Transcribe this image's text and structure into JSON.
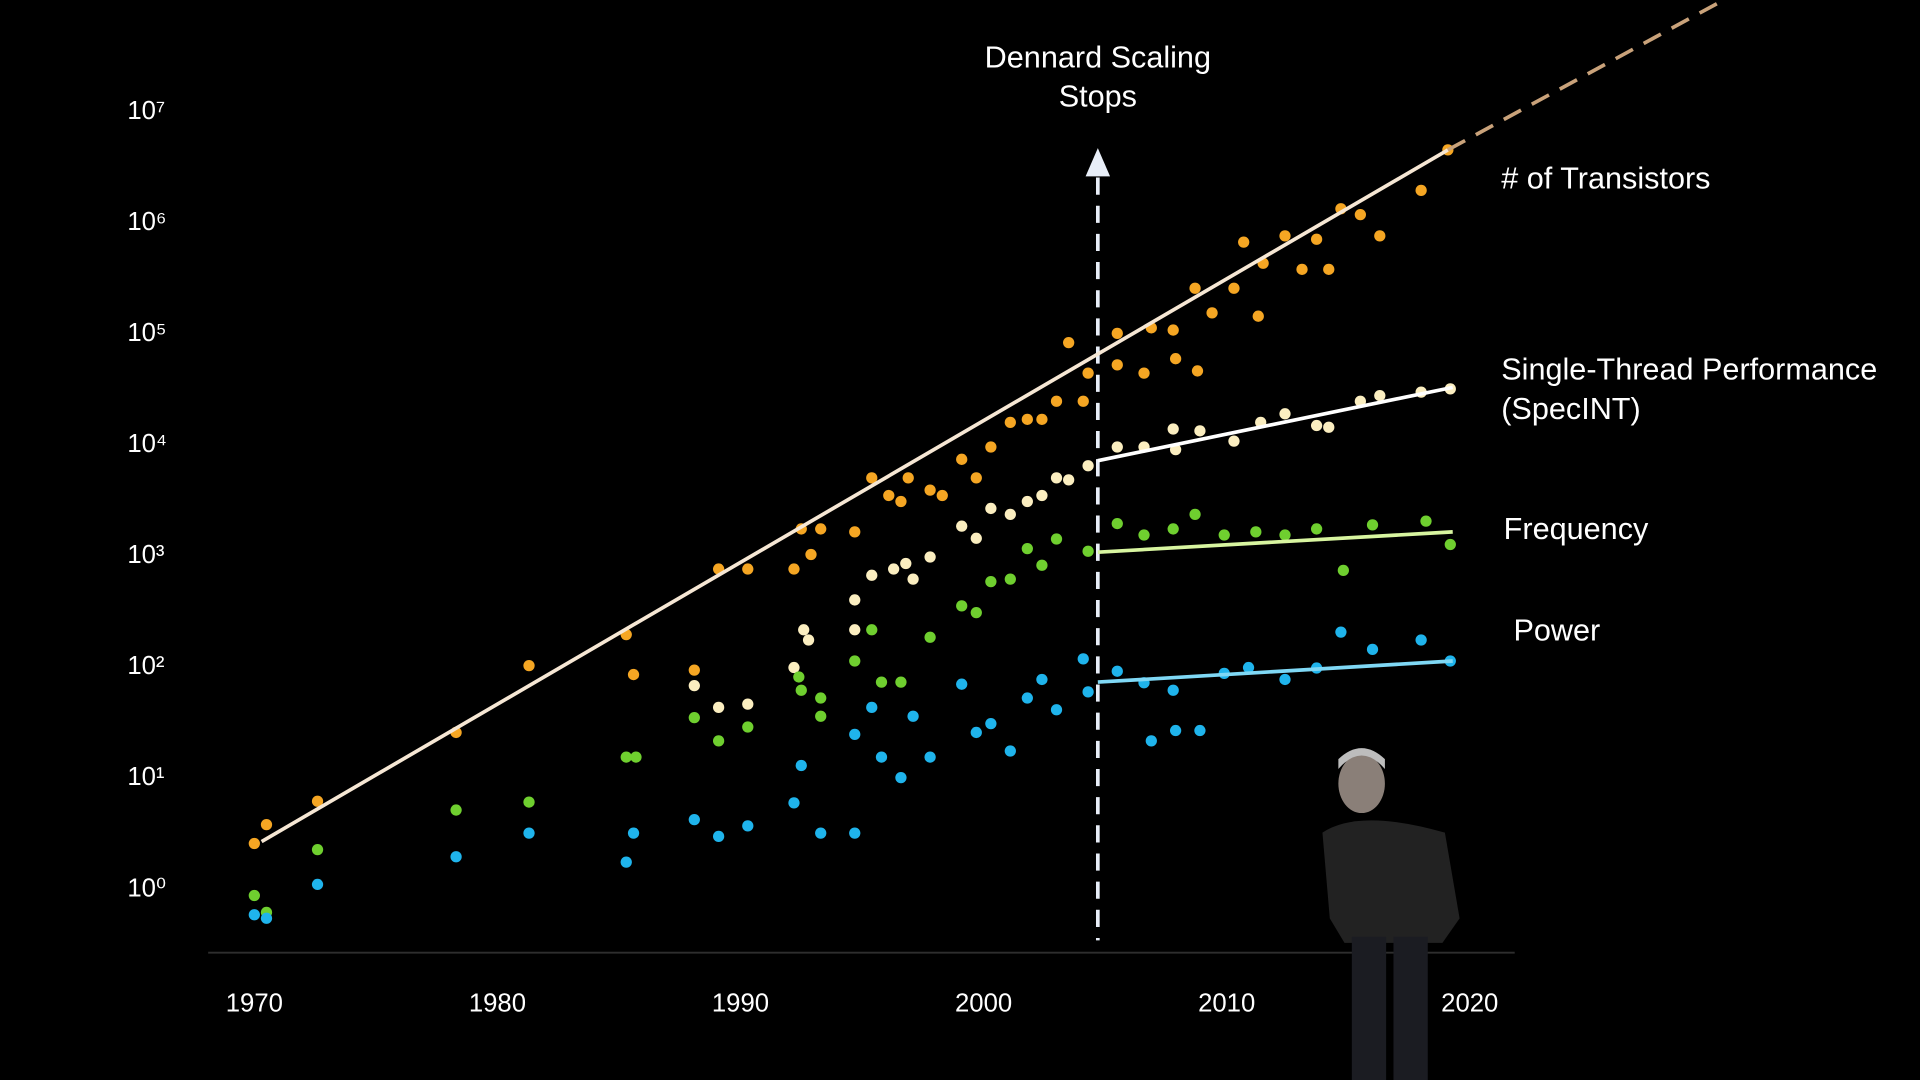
{
  "chart_data": {
    "type": "scatter",
    "log_y": true,
    "grid": false,
    "xlim": [
      1968,
      2022
    ],
    "ylim": [
      0.26,
      100000000
    ],
    "xticks": [
      1970,
      1980,
      1990,
      2000,
      2010,
      2020
    ],
    "yticks": [
      {
        "value": 1,
        "label": "10⁰"
      },
      {
        "value": 10,
        "label": "10¹"
      },
      {
        "value": 100,
        "label": "10²"
      },
      {
        "value": 1000,
        "label": "10³"
      },
      {
        "value": 10000,
        "label": "10⁴"
      },
      {
        "value": 100000,
        "label": "10⁵"
      },
      {
        "value": 1000000,
        "label": "10⁶"
      },
      {
        "value": 10000000,
        "label": "10⁷"
      }
    ],
    "annotation": {
      "lines": [
        "Dennard Scaling",
        "Stops"
      ],
      "x": 2004.7
    },
    "series": [
      {
        "name": "# of Transistors",
        "color": "#f5a623",
        "x": [
          1970.0,
          1970.5,
          1972.6,
          1978.3,
          1981.3,
          1985.3,
          1985.6,
          1988.1,
          1989.1,
          1990.3,
          1992.2,
          1992.5,
          1992.9,
          1993.3,
          1994.7,
          1995.4,
          1996.1,
          1996.6,
          1996.9,
          1997.8,
          1998.3,
          1999.1,
          1999.7,
          2000.3,
          2001.1,
          2001.8,
          2002.4,
          2003.0,
          2003.5,
          2004.1,
          2004.3,
          2005.5,
          2005.5,
          2006.6,
          2006.9,
          2007.8,
          2007.9,
          2008.7,
          2008.8,
          2009.4,
          2010.3,
          2010.7,
          2011.3,
          2011.5,
          2012.4,
          2013.1,
          2013.7,
          2014.2,
          2014.7,
          2015.5,
          2016.3,
          2018.0,
          2019.1
        ],
        "values": [
          2.5,
          3.7,
          6,
          25,
          100,
          190,
          83,
          91,
          740,
          740,
          740,
          1700,
          1000,
          1700,
          1600,
          4900,
          3400,
          3000,
          4900,
          3800,
          3400,
          7200,
          4900,
          9300,
          15500,
          16500,
          16500,
          24000,
          81000,
          24000,
          43000,
          98000,
          51000,
          43000,
          110000,
          105000,
          58000,
          250000,
          45000,
          150000,
          250000,
          650000,
          140000,
          420000,
          740000,
          370000,
          690000,
          370000,
          1300000,
          1150000,
          740000,
          1900000,
          4400000
        ],
        "trend": {
          "color": "#f6e7d4",
          "x": [
            1970.3,
            2019.1
          ],
          "values": [
            2.6,
            4400000
          ]
        },
        "projection": {
          "color": "#c9a27a",
          "x": [
            2019.1,
            2030.5
          ],
          "values": [
            4400000,
            100000000
          ]
        }
      },
      {
        "name": "Single-Thread Performance (SpecINT)",
        "color": "#fbeec0",
        "x": [
          1988.1,
          1989.1,
          1990.3,
          1992.2,
          1992.6,
          1992.8,
          1994.7,
          1994.7,
          1995.4,
          1996.3,
          1996.8,
          1997.1,
          1997.8,
          1999.1,
          1999.7,
          2000.3,
          2001.1,
          2001.8,
          2002.4,
          2003.0,
          2003.5,
          2004.3,
          2005.5,
          2006.6,
          2007.8,
          2007.9,
          2008.9,
          2010.3,
          2011.4,
          2012.4,
          2013.7,
          2014.2,
          2015.5,
          2016.3,
          2018.0,
          2019.2
        ],
        "values": [
          66,
          42,
          45,
          96,
          210,
          170,
          210,
          390,
          650,
          740,
          830,
          600,
          950,
          1800,
          1400,
          2600,
          2300,
          3000,
          3400,
          4900,
          4700,
          6300,
          9300,
          9300,
          13500,
          8800,
          13000,
          10500,
          15500,
          18500,
          14500,
          14000,
          24000,
          27000,
          29000,
          31000
        ],
        "trend": {
          "color": "#ffffff",
          "x": [
            2004.7,
            2019.3
          ],
          "values": [
            7000,
            32000
          ]
        }
      },
      {
        "name": "Frequency",
        "color": "#6fcf2f",
        "x": [
          1970.0,
          1970.5,
          1972.6,
          1978.3,
          1981.3,
          1985.3,
          1985.7,
          1988.1,
          1989.1,
          1990.3,
          1992.4,
          1992.5,
          1993.3,
          1993.3,
          1994.7,
          1995.4,
          1995.8,
          1996.6,
          1997.8,
          1999.1,
          1999.7,
          2000.3,
          2001.1,
          2001.8,
          2002.4,
          2003.0,
          2004.3,
          2005.5,
          2006.6,
          2007.8,
          2008.7,
          2009.9,
          2011.2,
          2012.4,
          2013.7,
          2014.8,
          2016.0,
          2018.2,
          2019.2
        ],
        "values": [
          0.85,
          0.6,
          2.2,
          5,
          5.9,
          15,
          15,
          34,
          21,
          28,
          79,
          60,
          51,
          35,
          110,
          210,
          71,
          71,
          180,
          345,
          300,
          570,
          600,
          1130,
          800,
          1380,
          1070,
          1900,
          1500,
          1700,
          2300,
          1500,
          1600,
          1500,
          1700,
          720,
          1850,
          2000,
          1230
        ],
        "trend": {
          "color": "#d8f5a0",
          "x": [
            2004.7,
            2019.3
          ],
          "values": [
            1050,
            1600
          ]
        }
      },
      {
        "name": "Power",
        "color": "#1fb4ec",
        "x": [
          1970.0,
          1970.5,
          1972.6,
          1978.3,
          1981.3,
          1985.3,
          1985.6,
          1988.1,
          1989.1,
          1990.3,
          1992.2,
          1992.5,
          1993.3,
          1994.7,
          1994.7,
          1995.4,
          1995.8,
          1996.6,
          1997.1,
          1997.8,
          1999.1,
          1999.7,
          2000.3,
          2001.1,
          2001.8,
          2002.4,
          2003.0,
          2004.1,
          2004.3,
          2005.5,
          2006.6,
          2006.9,
          2007.8,
          2007.9,
          2008.9,
          2009.9,
          2010.9,
          2012.4,
          2013.7,
          2014.7,
          2016.0,
          2018.0,
          2019.2
        ],
        "values": [
          0.57,
          0.53,
          1.07,
          1.9,
          3.1,
          1.7,
          3.1,
          4.1,
          2.9,
          3.6,
          5.8,
          12.6,
          3.1,
          3.1,
          24,
          42,
          15,
          9.8,
          35,
          15,
          68,
          25,
          30,
          17,
          51,
          75,
          40,
          115,
          58,
          89,
          70,
          21,
          60,
          26,
          26,
          85,
          96,
          75,
          95,
          200,
          140,
          170,
          110
        ],
        "trend": {
          "color": "#7fd8f5",
          "x": [
            2004.7,
            2019.3
          ],
          "values": [
            71,
            110
          ]
        }
      }
    ]
  }
}
